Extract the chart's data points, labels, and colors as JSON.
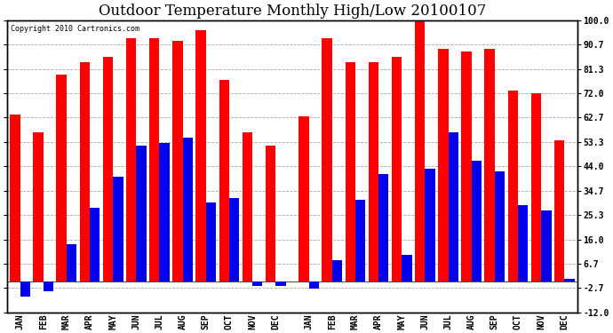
{
  "title": "Outdoor Temperature Monthly High/Low 20100107",
  "copyright": "Copyright 2010 Cartronics.com",
  "months": [
    "JAN",
    "FEB",
    "MAR",
    "APR",
    "MAY",
    "JUN",
    "JUL",
    "AUG",
    "SEP",
    "OCT",
    "NOV",
    "DEC"
  ],
  "highs_year1": [
    64,
    57,
    79,
    84,
    86,
    93,
    93,
    92,
    96,
    77,
    57,
    52
  ],
  "lows_year1": [
    -6,
    -4,
    14,
    28,
    40,
    52,
    53,
    55,
    30,
    32,
    -2,
    -2
  ],
  "highs_year2": [
    63,
    93,
    84,
    84,
    86,
    101,
    89,
    88,
    89,
    73,
    72,
    54
  ],
  "lows_year2": [
    -3,
    8,
    31,
    41,
    10,
    43,
    57,
    46,
    42,
    29,
    27,
    1
  ],
  "ylim": [
    -12.0,
    100.0
  ],
  "yticks": [
    -12.0,
    -2.7,
    6.7,
    16.0,
    25.3,
    34.7,
    44.0,
    53.3,
    62.7,
    72.0,
    81.3,
    90.7,
    100.0
  ],
  "bar_color_high": "#ff0000",
  "bar_color_low": "#0000ee",
  "background_color": "#ffffff",
  "grid_color": "#aaaaaa",
  "title_fontsize": 12,
  "tick_fontsize": 7,
  "copyright_fontsize": 6
}
